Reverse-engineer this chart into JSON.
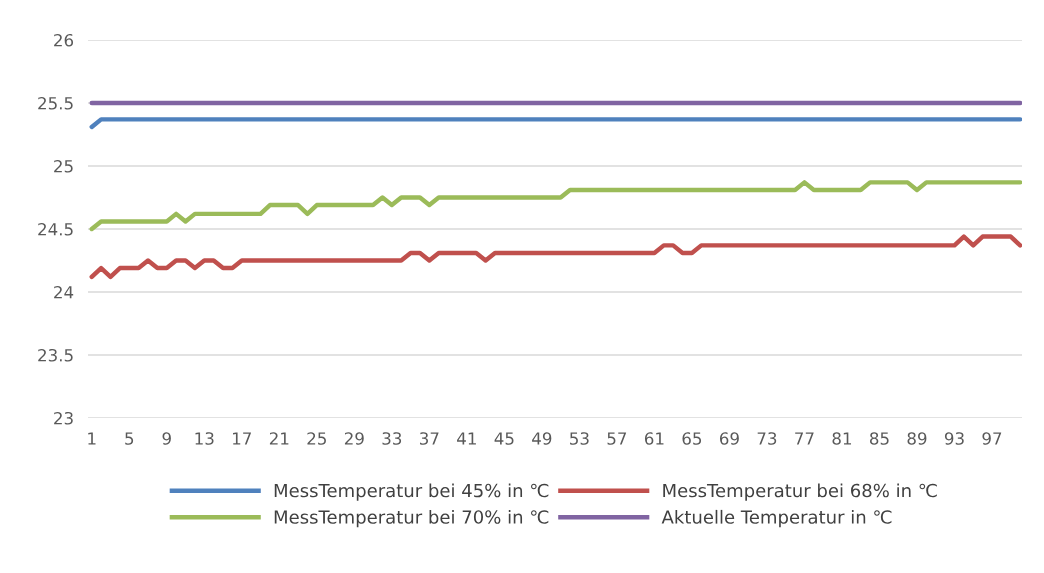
{
  "chart_data": {
    "type": "line",
    "categories": [
      "1",
      null,
      null,
      null,
      "5",
      null,
      null,
      null,
      "9",
      null,
      null,
      null,
      "13",
      null,
      null,
      null,
      "17",
      null,
      null,
      null,
      "21",
      null,
      null,
      null,
      "25",
      null,
      null,
      null,
      "29",
      null,
      null,
      null,
      "33",
      null,
      null,
      null,
      "37",
      null,
      null,
      null,
      "41",
      null,
      null,
      null,
      "45",
      null,
      null,
      null,
      "49",
      null,
      null,
      null,
      "53",
      null,
      null,
      null,
      "57",
      null,
      null,
      null,
      "61",
      null,
      null,
      null,
      "65",
      null,
      null,
      null,
      "69",
      null,
      null,
      null,
      "73",
      null,
      null,
      null,
      "77",
      null,
      null,
      null,
      "81",
      null,
      null,
      null,
      "85",
      null,
      null,
      null,
      "89",
      null,
      null,
      null,
      "93",
      null,
      null,
      null,
      "97",
      null,
      null,
      null
    ],
    "series": [
      {
        "name": "MessTemperatur bei 45% in ℃",
        "color": "#4f81bd",
        "values": [
          25.31,
          25.37,
          25.37,
          25.37,
          25.37,
          25.37,
          25.37,
          25.37,
          25.37,
          25.37,
          25.37,
          25.37,
          25.37,
          25.37,
          25.37,
          25.37,
          25.37,
          25.37,
          25.37,
          25.37,
          25.37,
          25.37,
          25.37,
          25.37,
          25.37,
          25.37,
          25.37,
          25.37,
          25.37,
          25.37,
          25.37,
          25.37,
          25.37,
          25.37,
          25.37,
          25.37,
          25.37,
          25.37,
          25.37,
          25.37,
          25.37,
          25.37,
          25.37,
          25.37,
          25.37,
          25.37,
          25.37,
          25.37,
          25.37,
          25.37,
          25.37,
          25.37,
          25.37,
          25.37,
          25.37,
          25.37,
          25.37,
          25.37,
          25.37,
          25.37,
          25.37,
          25.37,
          25.37,
          25.37,
          25.37,
          25.37,
          25.37,
          25.37,
          25.37,
          25.37,
          25.37,
          25.37,
          25.37,
          25.37,
          25.37,
          25.37,
          25.37,
          25.37,
          25.37,
          25.37,
          25.37,
          25.37,
          25.37,
          25.37,
          25.37,
          25.37,
          25.37,
          25.37,
          25.37,
          25.37,
          25.37,
          25.37,
          25.37,
          25.37,
          25.37,
          25.37,
          25.37,
          25.37,
          25.37,
          25.37
        ]
      },
      {
        "name": "MessTemperatur bei 68% in ℃",
        "color": "#c0504d",
        "values": [
          24.12,
          24.19,
          24.12,
          24.19,
          24.19,
          24.19,
          24.25,
          24.19,
          24.19,
          24.25,
          24.25,
          24.19,
          24.25,
          24.25,
          24.19,
          24.19,
          24.25,
          24.25,
          24.25,
          24.25,
          24.25,
          24.25,
          24.25,
          24.25,
          24.25,
          24.25,
          24.25,
          24.25,
          24.25,
          24.25,
          24.25,
          24.25,
          24.25,
          24.25,
          24.31,
          24.31,
          24.25,
          24.31,
          24.31,
          24.31,
          24.31,
          24.31,
          24.25,
          24.31,
          24.31,
          24.31,
          24.31,
          24.31,
          24.31,
          24.31,
          24.31,
          24.31,
          24.31,
          24.31,
          24.31,
          24.31,
          24.31,
          24.31,
          24.31,
          24.31,
          24.31,
          24.37,
          24.37,
          24.31,
          24.31,
          24.37,
          24.37,
          24.37,
          24.37,
          24.37,
          24.37,
          24.37,
          24.37,
          24.37,
          24.37,
          24.37,
          24.37,
          24.37,
          24.37,
          24.37,
          24.37,
          24.37,
          24.37,
          24.37,
          24.37,
          24.37,
          24.37,
          24.37,
          24.37,
          24.37,
          24.37,
          24.37,
          24.37,
          24.44,
          24.37,
          24.44,
          24.44,
          24.44,
          24.44,
          24.37
        ]
      },
      {
        "name": "MessTemperatur bei 70% in ℃",
        "color": "#9bbb59",
        "values": [
          24.5,
          24.56,
          24.56,
          24.56,
          24.56,
          24.56,
          24.56,
          24.56,
          24.56,
          24.62,
          24.56,
          24.62,
          24.62,
          24.62,
          24.62,
          24.62,
          24.62,
          24.62,
          24.62,
          24.69,
          24.69,
          24.69,
          24.69,
          24.62,
          24.69,
          24.69,
          24.69,
          24.69,
          24.69,
          24.69,
          24.69,
          24.75,
          24.69,
          24.75,
          24.75,
          24.75,
          24.69,
          24.75,
          24.75,
          24.75,
          24.75,
          24.75,
          24.75,
          24.75,
          24.75,
          24.75,
          24.75,
          24.75,
          24.75,
          24.75,
          24.75,
          24.81,
          24.81,
          24.81,
          24.81,
          24.81,
          24.81,
          24.81,
          24.81,
          24.81,
          24.81,
          24.81,
          24.81,
          24.81,
          24.81,
          24.81,
          24.81,
          24.81,
          24.81,
          24.81,
          24.81,
          24.81,
          24.81,
          24.81,
          24.81,
          24.81,
          24.87,
          24.81,
          24.81,
          24.81,
          24.81,
          24.81,
          24.81,
          24.87,
          24.87,
          24.87,
          24.87,
          24.87,
          24.81,
          24.87,
          24.87,
          24.87,
          24.87,
          24.87,
          24.87,
          24.87,
          24.87,
          24.87,
          24.87,
          24.87
        ]
      },
      {
        "name": "Aktuelle Temperatur in ℃",
        "color": "#8064a2",
        "values": [
          25.5,
          25.5,
          25.5,
          25.5,
          25.5,
          25.5,
          25.5,
          25.5,
          25.5,
          25.5,
          25.5,
          25.5,
          25.5,
          25.5,
          25.5,
          25.5,
          25.5,
          25.5,
          25.5,
          25.5,
          25.5,
          25.5,
          25.5,
          25.5,
          25.5,
          25.5,
          25.5,
          25.5,
          25.5,
          25.5,
          25.5,
          25.5,
          25.5,
          25.5,
          25.5,
          25.5,
          25.5,
          25.5,
          25.5,
          25.5,
          25.5,
          25.5,
          25.5,
          25.5,
          25.5,
          25.5,
          25.5,
          25.5,
          25.5,
          25.5,
          25.5,
          25.5,
          25.5,
          25.5,
          25.5,
          25.5,
          25.5,
          25.5,
          25.5,
          25.5,
          25.5,
          25.5,
          25.5,
          25.5,
          25.5,
          25.5,
          25.5,
          25.5,
          25.5,
          25.5,
          25.5,
          25.5,
          25.5,
          25.5,
          25.5,
          25.5,
          25.5,
          25.5,
          25.5,
          25.5,
          25.5,
          25.5,
          25.5,
          25.5,
          25.5,
          25.5,
          25.5,
          25.5,
          25.5,
          25.5,
          25.5,
          25.5,
          25.5,
          25.5,
          25.5,
          25.5,
          25.5,
          25.5,
          25.5,
          25.5
        ]
      }
    ],
    "ylim": [
      23,
      26
    ],
    "yticks": [
      23,
      23.5,
      24,
      24.5,
      25,
      25.5,
      26
    ],
    "grid": "y",
    "legend": "bottom",
    "marker": "none",
    "line_style": "solid"
  }
}
